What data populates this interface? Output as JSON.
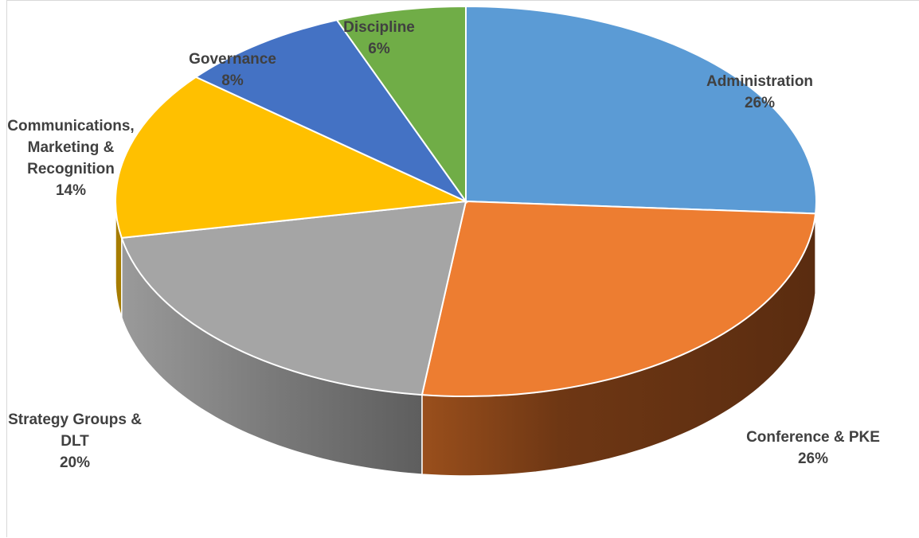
{
  "chart_data": {
    "type": "pie",
    "variant": "3d",
    "title": "",
    "slices": [
      {
        "label": [
          "Administration"
        ],
        "value": 26,
        "pct_label": "26%",
        "color": "#5b9bd5",
        "side_color": "#2e5f8f"
      },
      {
        "label": [
          "Conference & PKE"
        ],
        "value": 26,
        "pct_label": "26%",
        "color": "#ed7d31",
        "side_color": "#8a4216"
      },
      {
        "label": [
          "Strategy Groups &",
          "DLT"
        ],
        "value": 20,
        "pct_label": "20%",
        "color": "#a5a5a5",
        "side_color": "#6e6e6e"
      },
      {
        "label": [
          "Communications,",
          "Marketing &",
          "Recognition"
        ],
        "value": 14,
        "pct_label": "14%",
        "color": "#ffc000",
        "side_color": "#a67c00"
      },
      {
        "label": [
          "Governance"
        ],
        "value": 8,
        "pct_label": "8%",
        "color": "#4472c4",
        "side_color": "#2a4a85"
      },
      {
        "label": [
          "Discipline"
        ],
        "value": 6,
        "pct_label": "6%",
        "color": "#70ad47",
        "side_color": "#446b2a"
      }
    ],
    "legend": "none",
    "data_labels": "outside"
  }
}
